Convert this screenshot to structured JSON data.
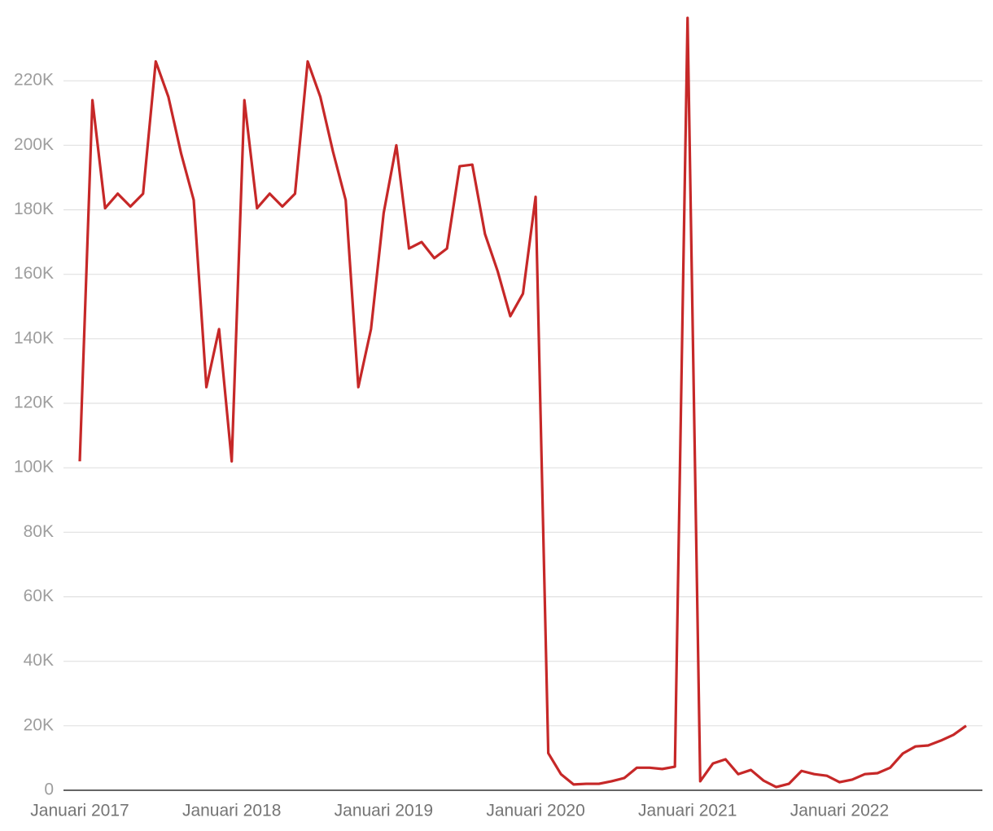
{
  "chart_data": {
    "type": "line",
    "categories": [
      "Januari 2017",
      null,
      null,
      null,
      null,
      null,
      null,
      null,
      null,
      null,
      null,
      null,
      "Januari 2018",
      null,
      null,
      null,
      null,
      null,
      null,
      null,
      null,
      null,
      null,
      null,
      "Januari 2019",
      null,
      null,
      null,
      null,
      null,
      null,
      null,
      null,
      null,
      null,
      null,
      "Januari 2020",
      null,
      null,
      null,
      null,
      null,
      null,
      null,
      null,
      null,
      null,
      null,
      "Januari 2021",
      null,
      null,
      null,
      null,
      null,
      null,
      null,
      null,
      null,
      null,
      null,
      "Januari 2022",
      null,
      null,
      null,
      null,
      null,
      null,
      null,
      null,
      null,
      null
    ],
    "series": [
      {
        "color": "#c62828",
        "values": [
          102000,
          214000,
          180500,
          185000,
          181000,
          185000,
          226000,
          215000,
          197500,
          183000,
          125000,
          143000,
          102000,
          214000,
          180500,
          185000,
          181000,
          185000,
          226000,
          215000,
          198000,
          183000,
          125000,
          143000,
          179000,
          200000,
          168000,
          170000,
          165000,
          168000,
          193500,
          194000,
          172500,
          161000,
          147000,
          154000,
          184000,
          11500,
          5000,
          1800,
          2000,
          2000,
          2800,
          3800,
          7000,
          7000,
          6600,
          7300,
          239500,
          2800,
          8300,
          9600,
          5000,
          6300,
          3000,
          1000,
          2000,
          6000,
          5000,
          4500,
          2500,
          3300,
          5000,
          5300,
          7000,
          11400,
          13600,
          13900,
          15400,
          17200,
          20000
        ]
      }
    ],
    "ylim": [
      0,
      240000
    ],
    "yticks": [
      0,
      {
        "value": 20000,
        "label": "20K"
      },
      {
        "value": 40000,
        "label": "40K"
      },
      {
        "value": 60000,
        "label": "60K"
      },
      {
        "value": 80000,
        "label": "80K"
      },
      {
        "value": 100000,
        "label": "100K"
      },
      {
        "value": 120000,
        "label": "120K"
      },
      {
        "value": 140000,
        "label": "140K"
      },
      {
        "value": 160000,
        "label": "160K"
      },
      {
        "value": 180000,
        "label": "180K"
      },
      {
        "value": 200000,
        "label": "200K"
      },
      {
        "value": 220000,
        "label": "220K"
      }
    ],
    "grid": true
  }
}
